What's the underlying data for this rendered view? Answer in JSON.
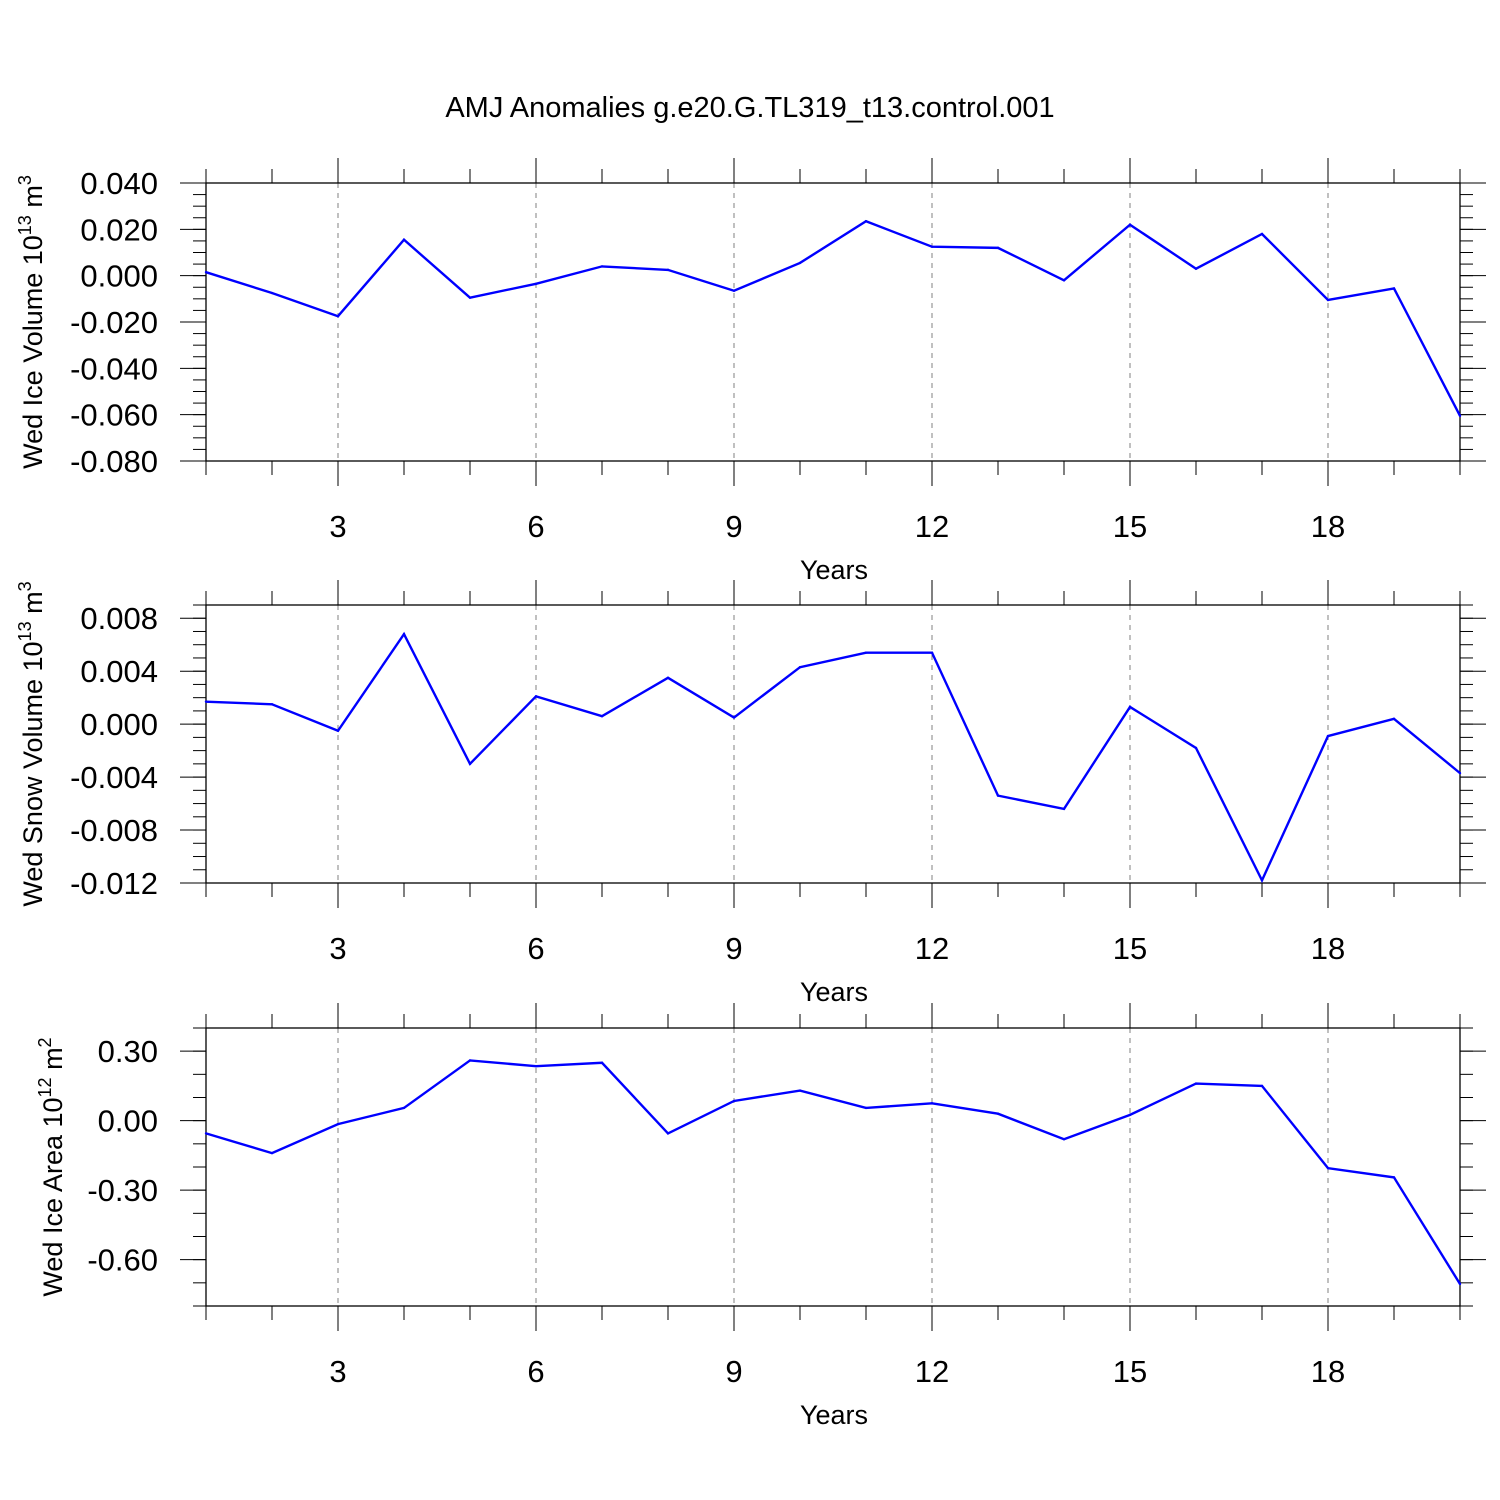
{
  "title": "AMJ Anomalies g.e20.G.TL319_t13.control.001",
  "colors": {
    "line": "#0000ff",
    "axis": "#000000",
    "grid": "#808080"
  },
  "chart_data": [
    {
      "type": "line",
      "id": "ice-volume",
      "ylabel_parts": [
        "Wed Ice Volume 10",
        "13",
        " m",
        "3"
      ],
      "xlabel": "Years",
      "xlim": [
        1,
        20
      ],
      "ylim": [
        -0.08,
        0.04
      ],
      "yticks": [
        0.04,
        0.02,
        0.0,
        -0.02,
        -0.04,
        -0.06,
        -0.08
      ],
      "ytick_labels": [
        "0.040",
        "0.020",
        "0.000",
        "-0.020",
        "-0.040",
        "-0.060",
        "-0.080"
      ],
      "yminor_step": 0.005,
      "xticks": [
        3,
        6,
        9,
        12,
        15,
        18
      ],
      "xtick_labels": [
        "3",
        "6",
        "9",
        "12",
        "15",
        "18"
      ],
      "grid": "vertical-dashed",
      "x": [
        1,
        2,
        3,
        4,
        5,
        6,
        7,
        8,
        9,
        10,
        11,
        12,
        13,
        14,
        15,
        16,
        17,
        18,
        19,
        20
      ],
      "values": [
        0.0015,
        -0.0075,
        -0.0175,
        0.0155,
        -0.0095,
        -0.0035,
        0.004,
        0.0025,
        -0.0065,
        0.0055,
        0.0235,
        0.0125,
        0.012,
        -0.002,
        0.022,
        0.003,
        0.018,
        -0.0105,
        -0.0055,
        -0.0605
      ]
    },
    {
      "type": "line",
      "id": "snow-volume",
      "ylabel_parts": [
        "Wed Snow Volume 10",
        "13",
        " m",
        "3"
      ],
      "xlabel": "Years",
      "xlim": [
        1,
        20
      ],
      "ylim": [
        -0.012,
        0.009
      ],
      "yticks": [
        0.008,
        0.004,
        0.0,
        -0.004,
        -0.008,
        -0.012
      ],
      "ytick_labels": [
        "0.008",
        "0.004",
        "0.000",
        "-0.004",
        "-0.008",
        "-0.012"
      ],
      "yminor_step": 0.001,
      "xticks": [
        3,
        6,
        9,
        12,
        15,
        18
      ],
      "xtick_labels": [
        "3",
        "6",
        "9",
        "12",
        "15",
        "18"
      ],
      "grid": "vertical-dashed",
      "x": [
        1,
        2,
        3,
        4,
        5,
        6,
        7,
        8,
        9,
        10,
        11,
        12,
        13,
        14,
        15,
        16,
        17,
        18,
        19,
        20
      ],
      "values": [
        0.0017,
        0.0015,
        -0.0005,
        0.0068,
        -0.003,
        0.0021,
        0.0006,
        0.0035,
        0.0005,
        0.0043,
        0.0054,
        0.0054,
        -0.0054,
        -0.0064,
        0.0013,
        -0.0018,
        -0.0118,
        -0.0009,
        0.0004,
        -0.0037
      ]
    },
    {
      "type": "line",
      "id": "ice-area",
      "ylabel_parts": [
        "Wed Ice Area 10",
        "12",
        " m",
        "2"
      ],
      "xlabel": "Years",
      "xlim": [
        1,
        20
      ],
      "ylim": [
        -0.8,
        0.4
      ],
      "yticks": [
        0.3,
        0.0,
        -0.3,
        -0.6
      ],
      "ytick_labels": [
        "0.30",
        "0.00",
        "-0.30",
        "-0.60"
      ],
      "yminor_step": 0.1,
      "xticks": [
        3,
        6,
        9,
        12,
        15,
        18
      ],
      "xtick_labels": [
        "3",
        "6",
        "9",
        "12",
        "15",
        "18"
      ],
      "grid": "vertical-dashed",
      "x": [
        1,
        2,
        3,
        4,
        5,
        6,
        7,
        8,
        9,
        10,
        11,
        12,
        13,
        14,
        15,
        16,
        17,
        18,
        19,
        20
      ],
      "values": [
        -0.055,
        -0.14,
        -0.015,
        0.055,
        0.26,
        0.235,
        0.25,
        -0.055,
        0.085,
        0.13,
        0.055,
        0.075,
        0.03,
        -0.08,
        0.025,
        0.16,
        0.15,
        -0.205,
        -0.245,
        -0.705
      ]
    }
  ]
}
